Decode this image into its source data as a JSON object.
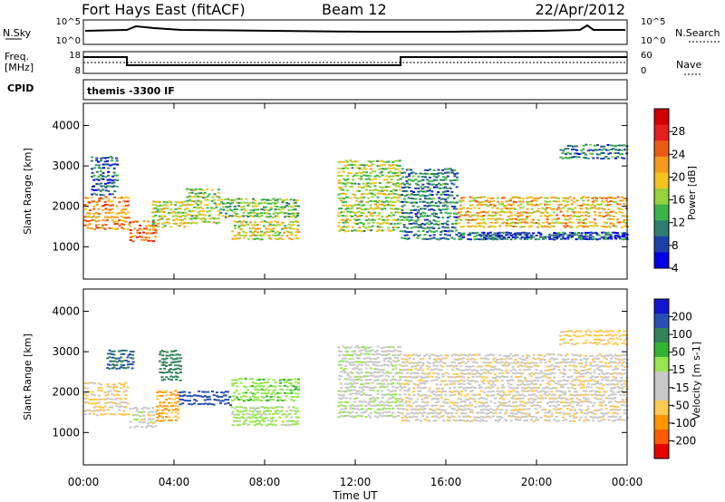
{
  "header": {
    "station": "Fort Hays East (fitACF)",
    "beam": "Beam 12",
    "date": "22/Apr/2012"
  },
  "top_panels": {
    "nsky_label": "N.Sky",
    "nsky_ticks": [
      "10^5",
      "10^0"
    ],
    "nsearch_label": "N.Search",
    "nsearch_ticks": [
      "10^5",
      "10^0"
    ],
    "freq_label": "Freq.",
    "freq_unit": "[MHz]",
    "freq_ticks": [
      "18",
      "8"
    ],
    "nave_label": "Nave",
    "nave_ticks": [
      "60",
      "0"
    ],
    "cpid_label": "CPID",
    "cpid_text": "themis -3300 IF"
  },
  "colors": {
    "power_scale": [
      "#0000e6",
      "#1f3fa8",
      "#2e7d6e",
      "#3cb44b",
      "#96d23c",
      "#f5c31e",
      "#f59a1e",
      "#eb5a14",
      "#e61e1e",
      "#d20000"
    ],
    "velocity_scale": [
      "#e60000",
      "#ff5a00",
      "#ff9600",
      "#ffc850",
      "#c8c8c8",
      "#c8c8c8",
      "#96e650",
      "#32b432",
      "#32825a",
      "#2850b4",
      "#1414d2"
    ]
  },
  "chart_data": [
    {
      "type": "heatmap",
      "title": "Power",
      "xlabel": "Time UT",
      "ylabel": "Slant Range [km]",
      "y_ticks": [
        "1000",
        "2000",
        "3000",
        "4000"
      ],
      "x_ticks": [
        "00:00",
        "04:00",
        "08:00",
        "12:00",
        "16:00",
        "20:00",
        "00:00"
      ],
      "colorbar_label": "Power [dB]",
      "colorbar_ticks": [
        "4",
        "8",
        "12",
        "16",
        "20",
        "24",
        "28"
      ],
      "xlim": [
        0,
        24
      ],
      "ylim": [
        200,
        4550
      ],
      "bands": [
        {
          "t": [
            0.0,
            2.0
          ],
          "r": [
            1450,
            2300
          ],
          "v": 22
        },
        {
          "t": [
            0.3,
            1.5
          ],
          "r": [
            2300,
            3300
          ],
          "v": 9
        },
        {
          "t": [
            2.0,
            3.2
          ],
          "r": [
            1150,
            1700
          ],
          "v": 24
        },
        {
          "t": [
            3.0,
            4.5
          ],
          "r": [
            1500,
            2200
          ],
          "v": 18
        },
        {
          "t": [
            4.5,
            6.0
          ],
          "r": [
            1600,
            2500
          ],
          "v": 16
        },
        {
          "t": [
            6.0,
            9.5
          ],
          "r": [
            1750,
            2250
          ],
          "v": 14
        },
        {
          "t": [
            6.5,
            9.5
          ],
          "r": [
            1200,
            1700
          ],
          "v": 18
        },
        {
          "t": [
            11.2,
            14.0
          ],
          "r": [
            1400,
            3200
          ],
          "v": 16
        },
        {
          "t": [
            14.0,
            16.5
          ],
          "r": [
            1200,
            3000
          ],
          "v": 10
        },
        {
          "t": [
            16.5,
            24.0
          ],
          "r": [
            1500,
            2300
          ],
          "v": 20
        },
        {
          "t": [
            16.5,
            24.0
          ],
          "r": [
            1200,
            1400
          ],
          "v": 8
        },
        {
          "t": [
            21.0,
            24.0
          ],
          "r": [
            3200,
            3600
          ],
          "v": 10
        }
      ]
    },
    {
      "type": "heatmap",
      "title": "Velocity",
      "xlabel": "Time UT",
      "ylabel": "Slant Range [km]",
      "y_ticks": [
        "1000",
        "2000",
        "3000",
        "4000"
      ],
      "x_ticks": [
        "00:00",
        "04:00",
        "08:00",
        "12:00",
        "16:00",
        "20:00",
        "00:00"
      ],
      "colorbar_label": "Velocity [m s-1]",
      "colorbar_ticks": [
        "200",
        "100",
        "50",
        "15",
        "-15",
        "-50",
        "-100",
        "-200"
      ],
      "xlim": [
        0,
        24
      ],
      "ylim": [
        200,
        4550
      ],
      "bands": [
        {
          "t": [
            0.0,
            2.0
          ],
          "r": [
            1450,
            2300
          ],
          "v": -20
        },
        {
          "t": [
            1.0,
            2.2
          ],
          "r": [
            2600,
            3100
          ],
          "v": 150
        },
        {
          "t": [
            2.0,
            3.2
          ],
          "r": [
            1150,
            1700
          ],
          "v": 0
        },
        {
          "t": [
            3.2,
            4.2
          ],
          "r": [
            1300,
            2100
          ],
          "v": -60
        },
        {
          "t": [
            3.3,
            4.3
          ],
          "r": [
            2300,
            3100
          ],
          "v": 120
        },
        {
          "t": [
            4.2,
            6.5
          ],
          "r": [
            1700,
            2100
          ],
          "v": 180
        },
        {
          "t": [
            6.5,
            9.5
          ],
          "r": [
            1800,
            2400
          ],
          "v": 40
        },
        {
          "t": [
            6.5,
            9.5
          ],
          "r": [
            1200,
            1700
          ],
          "v": 25
        },
        {
          "t": [
            11.2,
            14.0
          ],
          "r": [
            1400,
            3200
          ],
          "v": 5
        },
        {
          "t": [
            14.0,
            24.0
          ],
          "r": [
            1300,
            3000
          ],
          "v": -5
        },
        {
          "t": [
            21.0,
            24.0
          ],
          "r": [
            3200,
            3600
          ],
          "v": -30
        }
      ]
    }
  ]
}
